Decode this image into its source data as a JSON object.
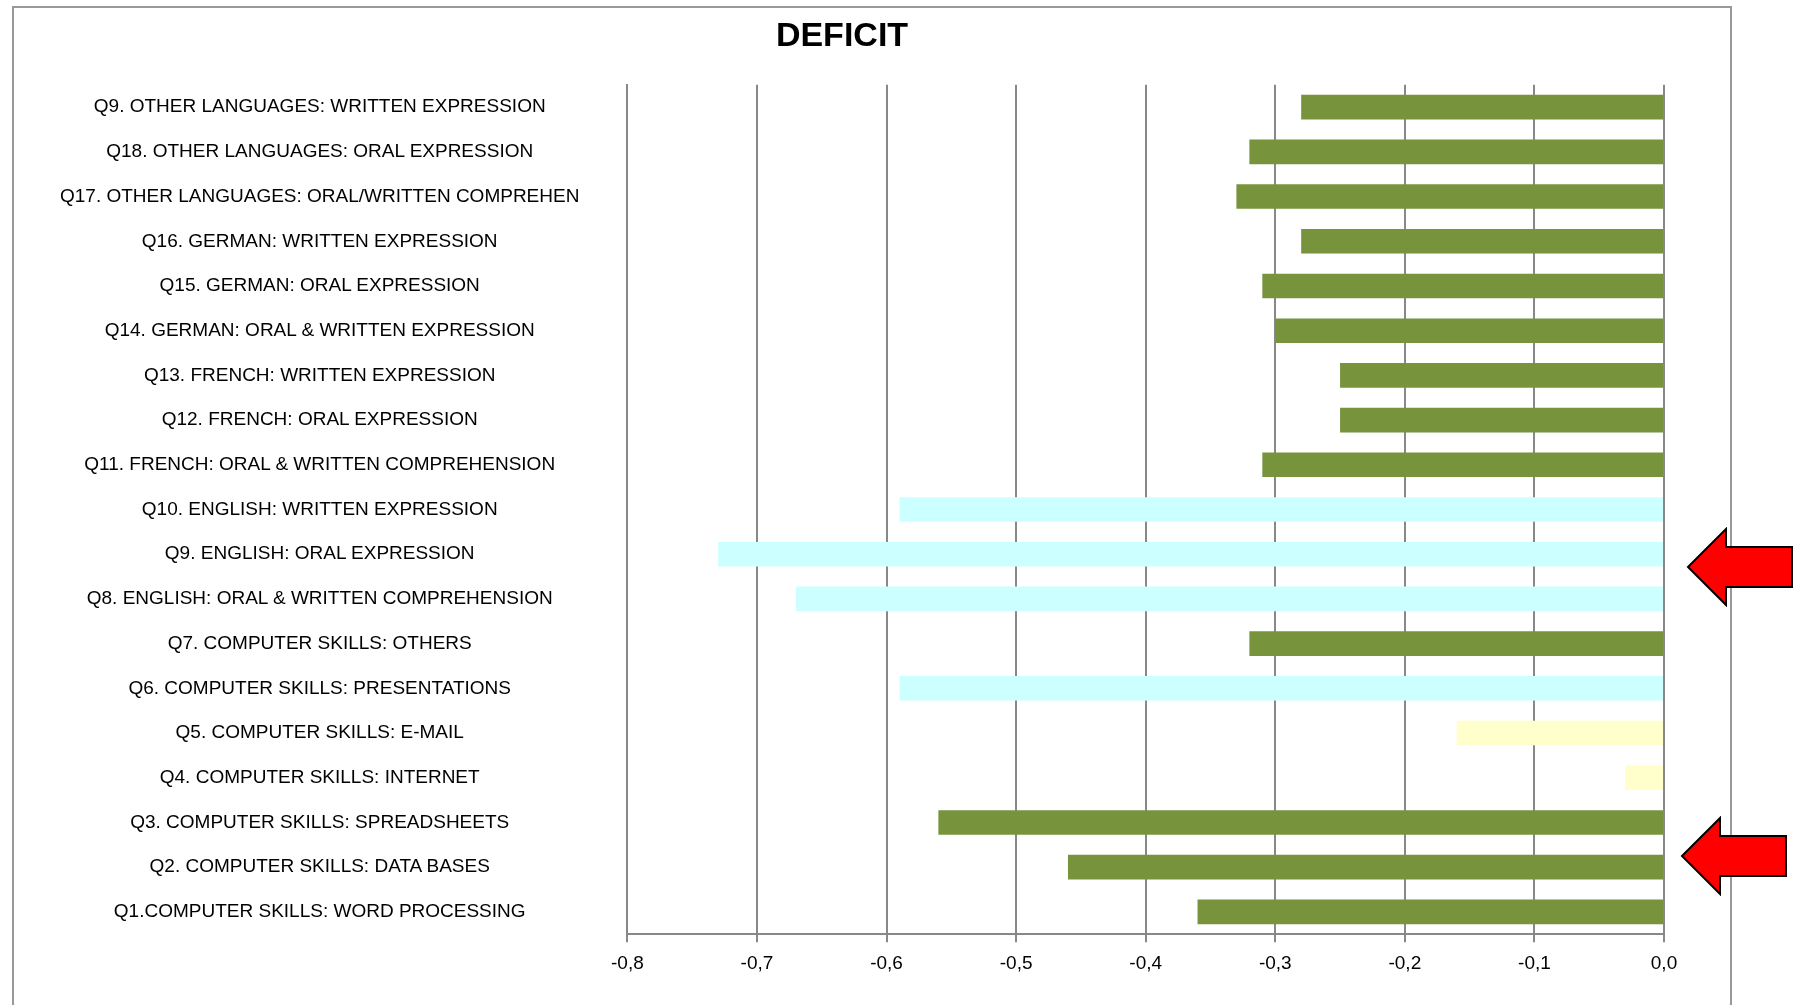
{
  "chart_data": {
    "type": "bar",
    "orientation": "horizontal",
    "title": "DEFICIT",
    "categories": [
      "Q9. OTHER LANGUAGES: WRITTEN EXPRESSION",
      "Q18. OTHER LANGUAGES: ORAL EXPRESSION",
      "Q17. OTHER LANGUAGES: ORAL/WRITTEN COMPREHEN",
      "Q16. GERMAN: WRITTEN EXPRESSION",
      "Q15. GERMAN: ORAL EXPRESSION",
      "Q14. GERMAN: ORAL & WRITTEN EXPRESSION",
      "Q13. FRENCH: WRITTEN EXPRESSION",
      "Q12. FRENCH: ORAL EXPRESSION",
      "Q11. FRENCH: ORAL & WRITTEN COMPREHENSION",
      "Q10. ENGLISH: WRITTEN EXPRESSION",
      "Q9. ENGLISH: ORAL EXPRESSION",
      "Q8. ENGLISH: ORAL & WRITTEN COMPREHENSION",
      "Q7. COMPUTER SKILLS: OTHERS",
      "Q6. COMPUTER SKILLS: PRESENTATIONS",
      "Q5. COMPUTER SKILLS: E-MAIL",
      "Q4. COMPUTER SKILLS: INTERNET",
      "Q3. COMPUTER SKILLS: SPREADSHEETS",
      "Q2. COMPUTER SKILLS: DATA BASES",
      "Q1.COMPUTER SKILLS: WORD PROCESSING"
    ],
    "values": [
      -0.28,
      -0.32,
      -0.33,
      -0.28,
      -0.31,
      -0.3,
      -0.25,
      -0.25,
      -0.31,
      -0.59,
      -0.73,
      -0.67,
      -0.32,
      -0.59,
      -0.16,
      -0.03,
      -0.56,
      -0.46,
      -0.36
    ],
    "colors": [
      "#77933c",
      "#77933c",
      "#77933c",
      "#77933c",
      "#77933c",
      "#77933c",
      "#77933c",
      "#77933c",
      "#77933c",
      "#ccffff",
      "#ccffff",
      "#ccffff",
      "#77933c",
      "#ccffff",
      "#ffffcc",
      "#ffffcc",
      "#77933c",
      "#77933c",
      "#77933c"
    ],
    "xlim": [
      -0.8,
      0
    ],
    "xticks": [
      {
        "value": -0.8,
        "label": "-0,8"
      },
      {
        "value": -0.7,
        "label": "-0,7"
      },
      {
        "value": -0.6,
        "label": "-0,6"
      },
      {
        "value": -0.5,
        "label": "-0,5"
      },
      {
        "value": -0.4,
        "label": "-0,4"
      },
      {
        "value": -0.3,
        "label": "-0,3"
      },
      {
        "value": -0.2,
        "label": "-0,2"
      },
      {
        "value": -0.1,
        "label": "-0,1"
      },
      {
        "value": 0,
        "label": "0,0"
      }
    ],
    "grid": "x",
    "legend": false
  }
}
